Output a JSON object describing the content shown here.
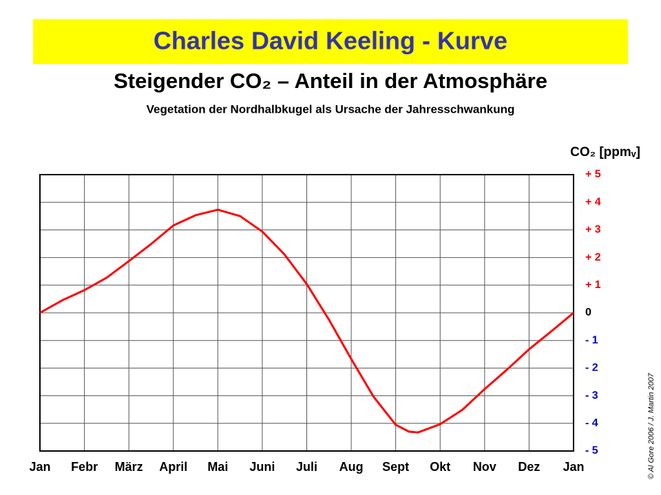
{
  "chart_data": {
    "type": "line",
    "title": "Charles David Keeling - Kurve",
    "subtitle": "Steigender CO₂ – Anteil in der Atmosphäre",
    "caption": "Vegetation der Nordhalbkugel als Ursache der Jahresschwankung",
    "y_label": "CO₂ [ppmᵥ]",
    "credit": "© Al Gore 2006 / J. Martin 2007",
    "xlim": [
      0,
      12
    ],
    "xticks": [
      {
        "value": 0,
        "label": "Jan"
      },
      {
        "value": 1,
        "label": "Febr"
      },
      {
        "value": 2,
        "label": "März"
      },
      {
        "value": 3,
        "label": "April"
      },
      {
        "value": 4,
        "label": "Mai"
      },
      {
        "value": 5,
        "label": "Juni"
      },
      {
        "value": 6,
        "label": "Juli"
      },
      {
        "value": 7,
        "label": "Aug"
      },
      {
        "value": 8,
        "label": "Sept"
      },
      {
        "value": 9,
        "label": "Okt"
      },
      {
        "value": 10,
        "label": "Nov"
      },
      {
        "value": 11,
        "label": "Dez"
      },
      {
        "value": 12,
        "label": "Jan"
      }
    ],
    "ylim": [
      -5,
      5
    ],
    "yticks": [
      {
        "value": 5,
        "label": "+ 5"
      },
      {
        "value": 4,
        "label": "+ 4"
      },
      {
        "value": 3,
        "label": "+ 3"
      },
      {
        "value": 2,
        "label": "+ 2"
      },
      {
        "value": 1,
        "label": "+ 1"
      },
      0,
      {
        "value": -1,
        "label": "- 1"
      },
      {
        "value": -2,
        "label": "- 2"
      },
      {
        "value": -3,
        "label": "- 3"
      },
      {
        "value": -4,
        "label": "- 4"
      },
      {
        "value": -5,
        "label": "- 5"
      }
    ],
    "positive_tick_color": "#ee0000",
    "negative_tick_color": "#0000cc",
    "grid": true,
    "x": [
      0,
      0.5,
      1,
      1.5,
      2,
      2.5,
      3,
      3.5,
      4,
      4.5,
      5,
      5.5,
      6,
      6.5,
      7,
      7.5,
      8,
      8.3,
      8.5,
      9,
      9.5,
      10,
      10.5,
      11,
      11.5,
      12
    ],
    "series": [
      {
        "color": "#ff0000",
        "values": [
          0,
          0.45,
          0.82,
          1.27,
          1.87,
          2.49,
          3.16,
          3.53,
          3.73,
          3.5,
          2.94,
          2.11,
          1.04,
          -0.25,
          -1.67,
          -3.03,
          -4.05,
          -4.3,
          -4.33,
          -4.03,
          -3.51,
          -2.76,
          -2.06,
          -1.32,
          -0.67,
          0
        ]
      }
    ]
  }
}
